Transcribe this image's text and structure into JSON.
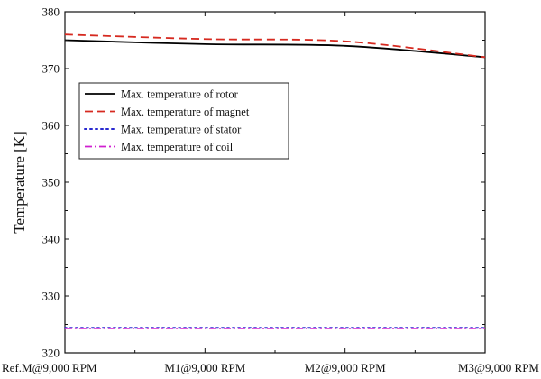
{
  "chart_data": {
    "type": "line",
    "title": "",
    "xlabel": "",
    "ylabel": "Temperature [K]",
    "categories": [
      "Ref.M@9,000 RPM",
      "M1@9,000 RPM",
      "M2@9,000 RPM",
      "M3@9,000 RPM"
    ],
    "ylim": [
      320,
      380
    ],
    "yticks": [
      320,
      330,
      340,
      350,
      360,
      370,
      380
    ],
    "grid": false,
    "legend_position": "upper-left",
    "series": [
      {
        "name": "Max. temperature of rotor",
        "values": [
          375.0,
          374.3,
          374.0,
          372.0
        ],
        "color": "#000000",
        "dash": "solid"
      },
      {
        "name": "Max. temperature of magnet",
        "values": [
          376.0,
          375.2,
          374.8,
          372.0
        ],
        "color": "#d62a20",
        "dash": "dashed"
      },
      {
        "name": "Max. temperature of stator",
        "values": [
          324.4,
          324.4,
          324.4,
          324.4
        ],
        "color": "#2a2ad0",
        "dash": "dotted"
      },
      {
        "name": "Max. temperature of coil",
        "values": [
          324.3,
          324.3,
          324.3,
          324.3
        ],
        "color": "#d020d0",
        "dash": "dash-dot"
      }
    ]
  }
}
